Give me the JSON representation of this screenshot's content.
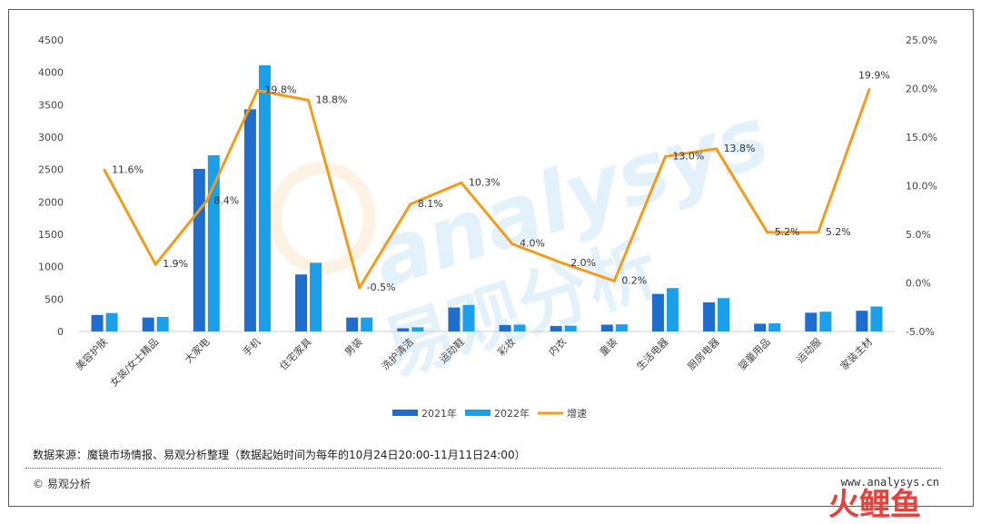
{
  "chart_data": {
    "type": "bar",
    "categories": [
      "美容护肤",
      "女装/女士精品",
      "大家电",
      "手机",
      "住宅家具",
      "男装",
      "洗护清洁",
      "运动鞋",
      "彩妆",
      "内衣",
      "童装",
      "生活电器",
      "厨房电器",
      "婴童用品",
      "运动服",
      "家装主材"
    ],
    "series": [
      {
        "name": "2021年",
        "type": "bar",
        "axis": "left",
        "color": "#1f6ecf",
        "values": [
          255,
          215,
          2510,
          3430,
          880,
          215,
          50,
          370,
          100,
          85,
          105,
          580,
          450,
          120,
          290,
          320
        ]
      },
      {
        "name": "2022年",
        "type": "bar",
        "axis": "left",
        "color": "#1aa0e8",
        "values": [
          285,
          225,
          2720,
          4110,
          1060,
          215,
          65,
          410,
          105,
          90,
          110,
          670,
          515,
          125,
          305,
          385
        ]
      },
      {
        "name": "增速",
        "type": "line",
        "axis": "right",
        "color": "#f39b1b",
        "values": [
          11.6,
          1.9,
          8.4,
          19.8,
          18.8,
          -0.5,
          8.1,
          10.3,
          4.0,
          2.0,
          0.2,
          13.0,
          13.8,
          5.2,
          5.2,
          19.9
        ],
        "labels": [
          "11.6%",
          "1.9%",
          "8.4%",
          "19.8%",
          "18.8%",
          "-0.5%",
          "8.1%",
          "10.3%",
          "4.0%",
          "2.0%",
          "0.2%",
          "13.0%",
          "13.8%",
          "5.2%",
          "5.2%",
          "19.9%"
        ]
      }
    ],
    "y_left": {
      "ylim": [
        0,
        4500
      ],
      "ticks": [
        "0",
        "500",
        "1000",
        "1500",
        "2000",
        "2500",
        "3000",
        "3500",
        "4000",
        "4500"
      ]
    },
    "y_right": {
      "ylim": [
        -5.0,
        25.0
      ],
      "ticks": [
        "-5.0%",
        "0.0%",
        "5.0%",
        "10.0%",
        "15.0%",
        "20.0%",
        "25.0%"
      ]
    },
    "grid": false,
    "legend_position": "bottom"
  },
  "footer": {
    "source": "数据来源：魔镜市场情报、易观分析整理（数据起始时间为每年的10月24日20:00-11月11日24:00）",
    "copyright": "© 易观分析",
    "website": "www.analysys.cn"
  },
  "watermark": {
    "text_en": "analysys",
    "text_cn": "易观分析"
  },
  "corner_logo": {
    "text": "火鲤鱼"
  }
}
